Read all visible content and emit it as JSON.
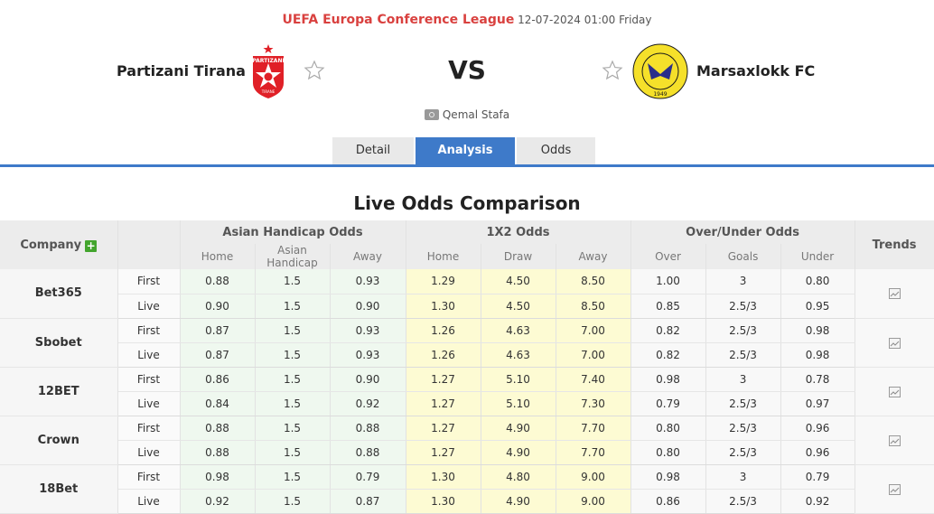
{
  "header": {
    "league": "UEFA Europa Conference League",
    "datetime": "12-07-2024 01:00 Friday",
    "home_team": "Partizani Tirana",
    "away_team": "Marsaxlokk FC",
    "vs": "VS",
    "venue": "Qemal Stafa"
  },
  "tabs": [
    {
      "label": "Detail",
      "active": false
    },
    {
      "label": "Analysis",
      "active": true
    },
    {
      "label": "Odds",
      "active": false
    }
  ],
  "section_title": "Live Odds Comparison",
  "table": {
    "company_header": "Company",
    "group_headers": {
      "asian": "Asian Handicap Odds",
      "x12": "1X2 Odds",
      "ou": "Over/Under Odds",
      "trends": "Trends"
    },
    "sub_headers": {
      "asian": [
        "Home",
        "Asian Handicap",
        "Away"
      ],
      "x12": [
        "Home",
        "Draw",
        "Away"
      ],
      "ou": [
        "Over",
        "Goals",
        "Under"
      ]
    },
    "rows": [
      {
        "company": "Bet365",
        "first": {
          "label": "First",
          "ah": [
            "0.88",
            "1.5",
            "0.93"
          ],
          "x12": [
            "1.29",
            "4.50",
            "8.50"
          ],
          "ou": [
            "1.00",
            "3",
            "0.80"
          ]
        },
        "live": {
          "label": "Live",
          "ah": [
            "0.90",
            "1.5",
            "0.90"
          ],
          "x12": [
            "1.30",
            "4.50",
            "8.50"
          ],
          "ou": [
            "0.85",
            "2.5/3",
            "0.95"
          ]
        }
      },
      {
        "company": "Sbobet",
        "first": {
          "label": "First",
          "ah": [
            "0.87",
            "1.5",
            "0.93"
          ],
          "x12": [
            "1.26",
            "4.63",
            "7.00"
          ],
          "ou": [
            "0.82",
            "2.5/3",
            "0.98"
          ]
        },
        "live": {
          "label": "Live",
          "ah": [
            "0.87",
            "1.5",
            "0.93"
          ],
          "x12": [
            "1.26",
            "4.63",
            "7.00"
          ],
          "ou": [
            "0.82",
            "2.5/3",
            "0.98"
          ]
        }
      },
      {
        "company": "12BET",
        "first": {
          "label": "First",
          "ah": [
            "0.86",
            "1.5",
            "0.90"
          ],
          "x12": [
            "1.27",
            "5.10",
            "7.40"
          ],
          "ou": [
            "0.98",
            "3",
            "0.78"
          ]
        },
        "live": {
          "label": "Live",
          "ah": [
            "0.84",
            "1.5",
            "0.92"
          ],
          "x12": [
            "1.27",
            "5.10",
            "7.30"
          ],
          "ou": [
            "0.79",
            "2.5/3",
            "0.97"
          ]
        }
      },
      {
        "company": "Crown",
        "first": {
          "label": "First",
          "ah": [
            "0.88",
            "1.5",
            "0.88"
          ],
          "x12": [
            "1.27",
            "4.90",
            "7.70"
          ],
          "ou": [
            "0.80",
            "2.5/3",
            "0.96"
          ]
        },
        "live": {
          "label": "Live",
          "ah": [
            "0.88",
            "1.5",
            "0.88"
          ],
          "x12": [
            "1.27",
            "4.90",
            "7.70"
          ],
          "ou": [
            "0.80",
            "2.5/3",
            "0.96"
          ]
        }
      },
      {
        "company": "18Bet",
        "first": {
          "label": "First",
          "ah": [
            "0.98",
            "1.5",
            "0.79"
          ],
          "x12": [
            "1.30",
            "4.80",
            "9.00"
          ],
          "ou": [
            "0.98",
            "3",
            "0.79"
          ]
        },
        "live": {
          "label": "Live",
          "ah": [
            "0.92",
            "1.5",
            "0.87"
          ],
          "x12": [
            "1.30",
            "4.90",
            "9.00"
          ],
          "ou": [
            "0.86",
            "2.5/3",
            "0.92"
          ]
        }
      }
    ]
  },
  "colors": {
    "league": "#d9413f",
    "accent": "#3e7ac9",
    "asian_bg": "#eff8ef",
    "x12_bg": "#fdfbd3",
    "plus": "#43a52d"
  }
}
